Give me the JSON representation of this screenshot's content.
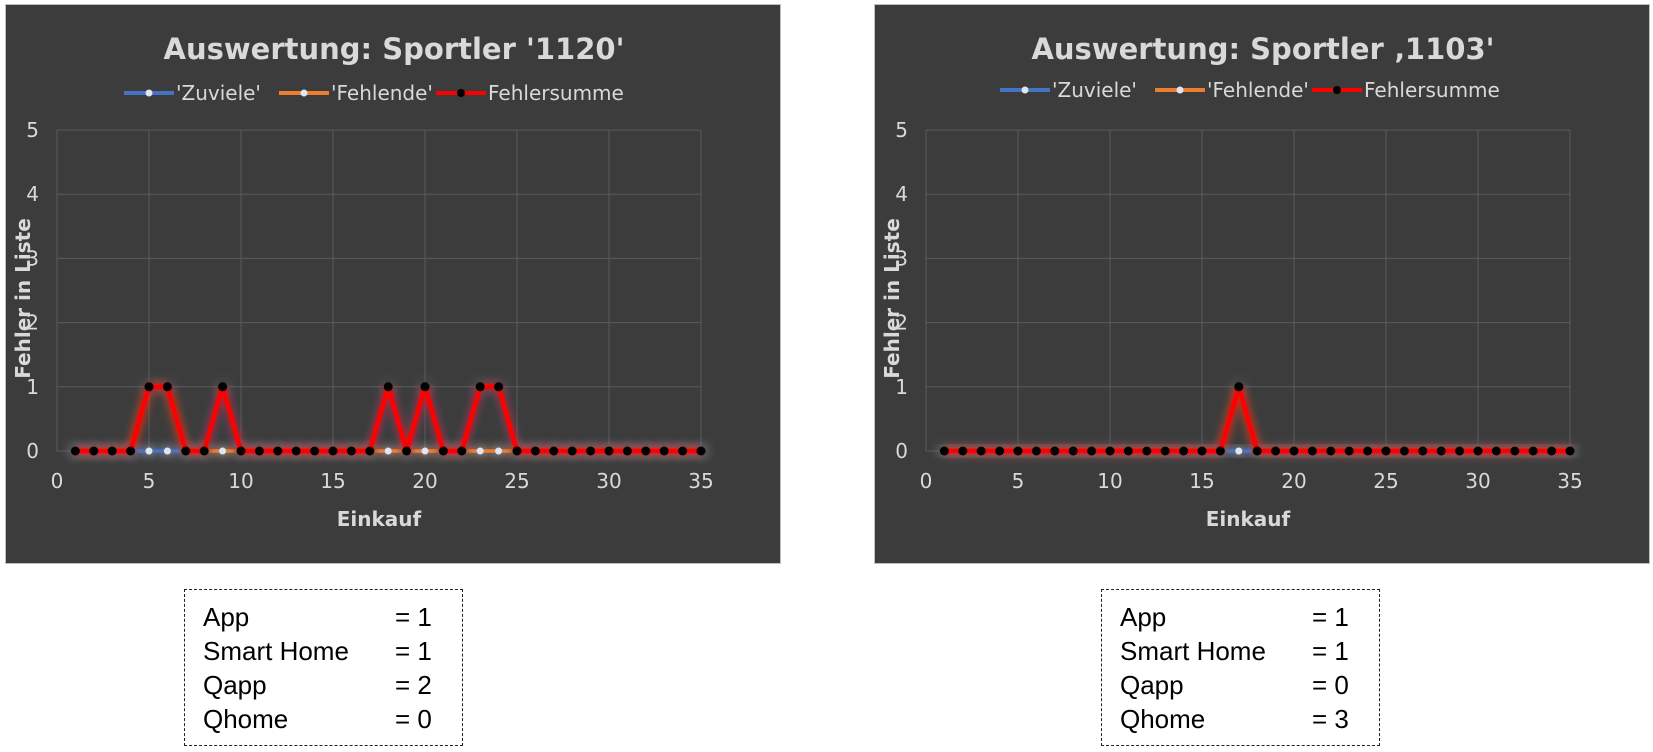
{
  "chart_data": [
    {
      "type": "line",
      "title": "Auswertung: Sportler '1120'",
      "xlabel": "Einkauf",
      "ylabel": "Fehler in Liste",
      "xlim": [
        0,
        35
      ],
      "ylim": [
        0,
        5
      ],
      "xticks": [
        "0",
        "5",
        "10",
        "15",
        "20",
        "25",
        "30",
        "35"
      ],
      "yticks": [
        "0",
        "1",
        "2",
        "3",
        "4",
        "5"
      ],
      "grid": true,
      "legend_position": "top",
      "x": [
        1,
        2,
        3,
        4,
        5,
        6,
        7,
        8,
        9,
        10,
        11,
        12,
        13,
        14,
        15,
        16,
        17,
        18,
        19,
        20,
        21,
        22,
        23,
        24,
        25,
        26,
        27,
        28,
        29,
        30,
        31,
        32,
        33,
        34,
        35
      ],
      "series": [
        {
          "name": "'Zuviele'",
          "color": "#4472c4",
          "values": [
            0,
            0,
            0,
            0,
            0,
            0,
            0,
            0,
            1,
            0,
            0,
            0,
            0,
            0,
            0,
            0,
            0,
            1,
            0,
            1,
            0,
            0,
            1,
            1,
            0,
            0,
            0,
            0,
            0,
            0,
            0,
            0,
            0,
            0,
            0
          ]
        },
        {
          "name": "'Fehlende'",
          "color": "#ed7d31",
          "values": [
            0,
            0,
            0,
            0,
            1,
            1,
            0,
            0,
            0,
            0,
            0,
            0,
            0,
            0,
            0,
            0,
            0,
            0,
            0,
            0,
            0,
            0,
            0,
            0,
            0,
            0,
            0,
            0,
            0,
            0,
            0,
            0,
            0,
            0,
            0
          ]
        },
        {
          "name": "Fehlersumme",
          "color": "#ff0000",
          "values": [
            0,
            0,
            0,
            0,
            1,
            1,
            0,
            0,
            1,
            0,
            0,
            0,
            0,
            0,
            0,
            0,
            0,
            1,
            0,
            1,
            0,
            0,
            1,
            1,
            0,
            0,
            0,
            0,
            0,
            0,
            0,
            0,
            0,
            0,
            0
          ]
        }
      ]
    },
    {
      "type": "line",
      "title": "Auswertung: Sportler ‚1103'",
      "xlabel": "Einkauf",
      "ylabel": "Fehler in Liste",
      "xlim": [
        0,
        35
      ],
      "ylim": [
        0,
        5
      ],
      "xticks": [
        "0",
        "5",
        "10",
        "15",
        "20",
        "25",
        "30",
        "35"
      ],
      "yticks": [
        "0",
        "1",
        "2",
        "3",
        "4",
        "5"
      ],
      "grid": true,
      "legend_position": "top",
      "x": [
        1,
        2,
        3,
        4,
        5,
        6,
        7,
        8,
        9,
        10,
        11,
        12,
        13,
        14,
        15,
        16,
        17,
        18,
        19,
        20,
        21,
        22,
        23,
        24,
        25,
        26,
        27,
        28,
        29,
        30,
        31,
        32,
        33,
        34,
        35
      ],
      "series": [
        {
          "name": "'Zuviele'",
          "color": "#4472c4",
          "values": [
            0,
            0,
            0,
            0,
            0,
            0,
            0,
            0,
            0,
            0,
            0,
            0,
            0,
            0,
            0,
            0,
            0,
            0,
            0,
            0,
            0,
            0,
            0,
            0,
            0,
            0,
            0,
            0,
            0,
            0,
            0,
            0,
            0,
            0,
            0
          ]
        },
        {
          "name": "'Fehlende'",
          "color": "#ed7d31",
          "values": [
            0,
            0,
            0,
            0,
            0,
            0,
            0,
            0,
            0,
            0,
            0,
            0,
            0,
            0,
            0,
            0,
            1,
            0,
            0,
            0,
            0,
            0,
            0,
            0,
            0,
            0,
            0,
            0,
            0,
            0,
            0,
            0,
            0,
            0,
            0
          ]
        },
        {
          "name": "Fehlersumme",
          "color": "#ff0000",
          "values": [
            0,
            0,
            0,
            0,
            0,
            0,
            0,
            0,
            0,
            0,
            0,
            0,
            0,
            0,
            0,
            0,
            1,
            0,
            0,
            0,
            0,
            0,
            0,
            0,
            0,
            0,
            0,
            0,
            0,
            0,
            0,
            0,
            0,
            0,
            0
          ]
        }
      ]
    }
  ],
  "summaries": [
    {
      "rows": [
        {
          "label": "App",
          "value": "= 1"
        },
        {
          "label": "Smart Home",
          "value": "= 1"
        },
        {
          "label": "Qapp",
          "value": "= 2"
        },
        {
          "label": "Qhome",
          "value": "= 0"
        }
      ]
    },
    {
      "rows": [
        {
          "label": "App",
          "value": "= 1"
        },
        {
          "label": "Smart Home",
          "value": "= 1"
        },
        {
          "label": "Qapp",
          "value": "= 0"
        },
        {
          "label": "Qhome",
          "value": "= 3"
        }
      ]
    }
  ],
  "colors": {
    "chart_background": "#3c3c3c",
    "grid": "#5a5a5a",
    "text": "#d9d9d9"
  }
}
